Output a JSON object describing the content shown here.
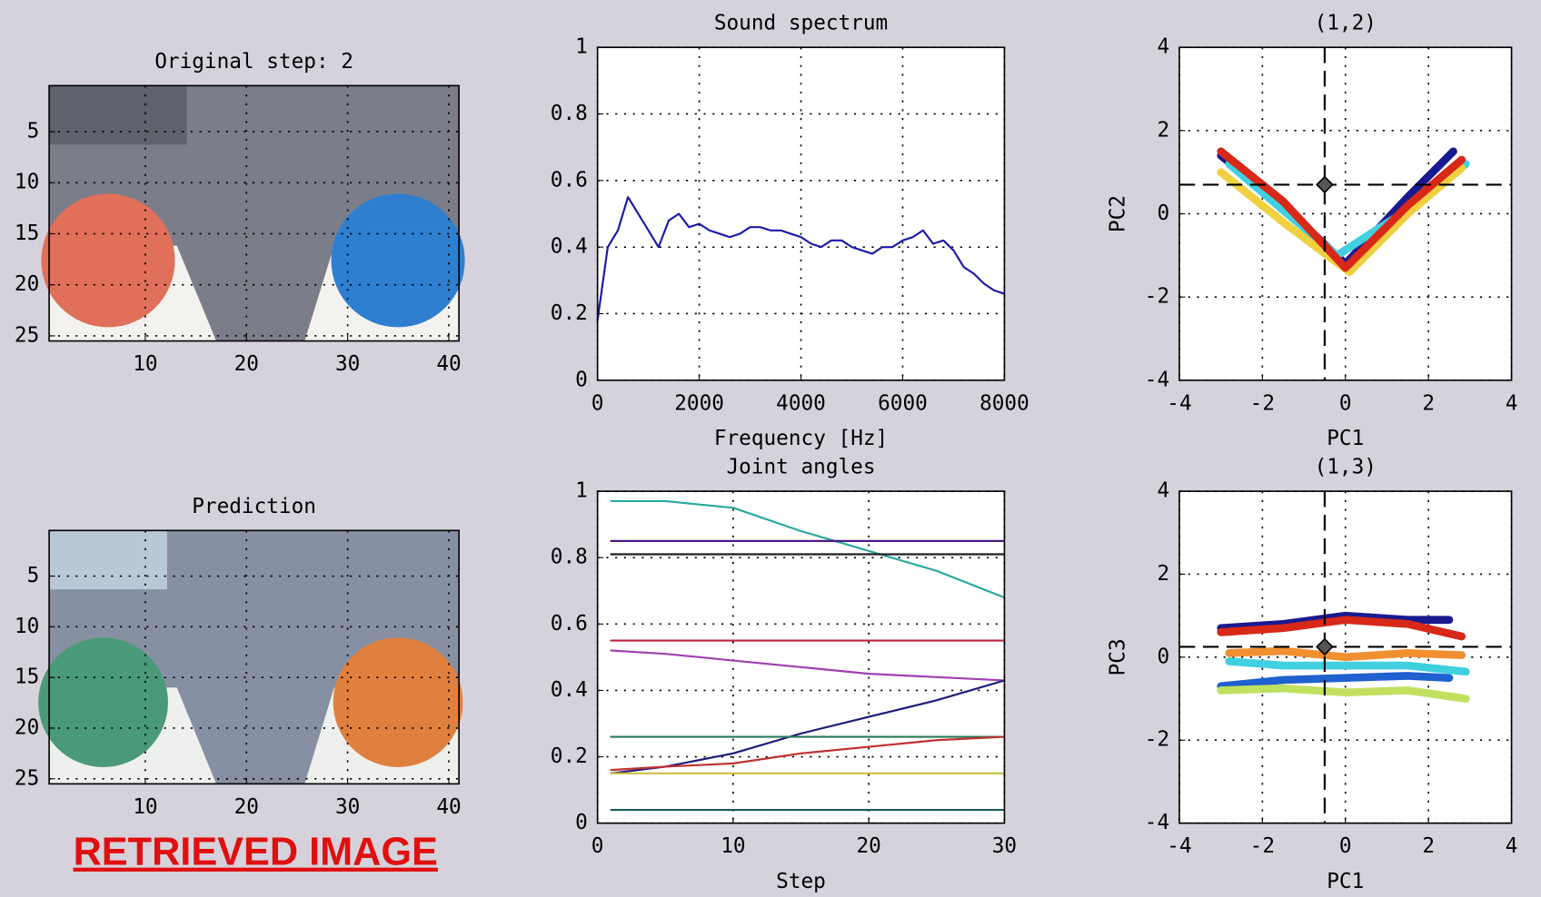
{
  "chart_data": [
    {
      "type": "image",
      "title": "Original step: 2",
      "xlim": [
        0.5,
        41
      ],
      "ylim": [
        25.5,
        0.5
      ],
      "xticks": [
        10,
        20,
        30,
        40
      ],
      "yticks": [
        5,
        10,
        15,
        20,
        25
      ],
      "grid": true
    },
    {
      "type": "line",
      "title": "Sound spectrum",
      "xlabel": "Frequency [Hz]",
      "xlim": [
        0,
        8000
      ],
      "ylim": [
        0,
        1
      ],
      "xticks": [
        0,
        2000,
        4000,
        6000,
        8000
      ],
      "yticks": [
        0,
        0.2,
        0.4,
        0.6,
        0.8,
        1
      ],
      "grid": true,
      "x": [
        0,
        200,
        400,
        600,
        800,
        1000,
        1200,
        1400,
        1600,
        1800,
        2000,
        2200,
        2400,
        2600,
        2800,
        3000,
        3200,
        3400,
        3600,
        3800,
        4000,
        4200,
        4400,
        4600,
        4800,
        5000,
        5200,
        5400,
        5600,
        5800,
        6000,
        6200,
        6400,
        6600,
        6800,
        7000,
        7200,
        7400,
        7600,
        7800,
        8000
      ],
      "series": [
        {
          "color": "#1a1aa8",
          "values": [
            0.18,
            0.4,
            0.45,
            0.55,
            0.5,
            0.45,
            0.4,
            0.48,
            0.5,
            0.46,
            0.47,
            0.45,
            0.44,
            0.43,
            0.44,
            0.46,
            0.46,
            0.45,
            0.45,
            0.44,
            0.43,
            0.41,
            0.4,
            0.42,
            0.42,
            0.4,
            0.39,
            0.38,
            0.4,
            0.4,
            0.42,
            0.43,
            0.45,
            0.41,
            0.42,
            0.39,
            0.34,
            0.32,
            0.29,
            0.27,
            0.26
          ]
        }
      ]
    },
    {
      "type": "line",
      "title": "(1,2)",
      "xlabel": "PC1",
      "ylabel": "PC2",
      "xlim": [
        -4,
        4
      ],
      "ylim": [
        -4,
        4
      ],
      "xticks": [
        -4,
        -2,
        0,
        2,
        4
      ],
      "yticks": [
        -4,
        -2,
        0,
        2,
        4
      ],
      "grid": true,
      "line_width": 8,
      "crosshair": {
        "x": -0.5,
        "y": 0.7
      },
      "series": [
        {
          "color": "#1a1a90",
          "x": [
            -3,
            -1.5,
            0,
            1.5,
            2.6
          ],
          "values": [
            1.4,
            0.2,
            -1.2,
            0.4,
            1.5
          ]
        },
        {
          "color": "#40d0e0",
          "x": [
            -2.8,
            -1.4,
            -0.2,
            1.5,
            2.9
          ],
          "values": [
            1.2,
            0,
            -1,
            0.1,
            1.2
          ]
        },
        {
          "color": "#f0d040",
          "x": [
            -3,
            -1.5,
            0.1,
            1.5,
            2.8
          ],
          "values": [
            1.0,
            -0.2,
            -1.4,
            0,
            1.1
          ]
        },
        {
          "color": "#d82818",
          "x": [
            -3,
            -1.5,
            0,
            1.5,
            2.8
          ],
          "values": [
            1.5,
            0.3,
            -1.3,
            0.2,
            1.3
          ]
        }
      ]
    },
    {
      "type": "image",
      "title": "Prediction",
      "xlim": [
        0.5,
        41
      ],
      "ylim": [
        25.5,
        0.5
      ],
      "xticks": [
        10,
        20,
        30,
        40
      ],
      "yticks": [
        5,
        10,
        15,
        20,
        25
      ],
      "grid": true
    },
    {
      "type": "line",
      "title": "Joint angles",
      "xlabel": "Step",
      "xlim": [
        0,
        30
      ],
      "ylim": [
        0,
        1
      ],
      "xticks": [
        0,
        10,
        20,
        30
      ],
      "yticks": [
        0,
        0.2,
        0.4,
        0.6,
        0.8,
        1
      ],
      "grid": true,
      "x": [
        1,
        5,
        10,
        15,
        20,
        25,
        30
      ],
      "series": [
        {
          "color": "#2aa8a0",
          "values": [
            0.97,
            0.97,
            0.95,
            0.88,
            0.82,
            0.76,
            0.68
          ]
        },
        {
          "color": "#4b1a8a",
          "values": [
            0.85,
            0.85,
            0.85,
            0.85,
            0.85,
            0.85,
            0.85
          ]
        },
        {
          "color": "#202020",
          "values": [
            0.81,
            0.81,
            0.81,
            0.81,
            0.81,
            0.81,
            0.81
          ]
        },
        {
          "color": "#c02040",
          "values": [
            0.55,
            0.55,
            0.55,
            0.55,
            0.55,
            0.55,
            0.55
          ]
        },
        {
          "color": "#a040b0",
          "values": [
            0.52,
            0.51,
            0.49,
            0.47,
            0.45,
            0.44,
            0.43
          ]
        },
        {
          "color": "#1a1a7a",
          "values": [
            0.15,
            0.17,
            0.21,
            0.27,
            0.32,
            0.37,
            0.43
          ]
        },
        {
          "color": "#2a7a5a",
          "values": [
            0.26,
            0.26,
            0.26,
            0.26,
            0.26,
            0.26,
            0.26
          ]
        },
        {
          "color": "#c03030",
          "values": [
            0.16,
            0.17,
            0.18,
            0.21,
            0.23,
            0.25,
            0.26
          ]
        },
        {
          "color": "#c8c040",
          "values": [
            0.15,
            0.15,
            0.15,
            0.15,
            0.15,
            0.15,
            0.15
          ]
        },
        {
          "color": "#1a5a5a",
          "values": [
            0.04,
            0.04,
            0.04,
            0.04,
            0.04,
            0.04,
            0.04
          ]
        }
      ]
    },
    {
      "type": "line",
      "title": "(1,3)",
      "xlabel": "PC1",
      "ylabel": "PC3",
      "xlim": [
        -4,
        4
      ],
      "ylim": [
        -4,
        4
      ],
      "xticks": [
        -4,
        -2,
        0,
        2,
        4
      ],
      "yticks": [
        -4,
        -2,
        0,
        2,
        4
      ],
      "grid": true,
      "line_width": 8,
      "crosshair": {
        "x": -0.5,
        "y": 0.25
      },
      "series": [
        {
          "color": "#1a1a90",
          "x": [
            -3,
            -1.5,
            0,
            1.5,
            2.5
          ],
          "values": [
            0.7,
            0.8,
            1.0,
            0.9,
            0.9
          ]
        },
        {
          "color": "#d82818",
          "x": [
            -3,
            -1.5,
            0,
            1.5,
            2.8
          ],
          "values": [
            0.6,
            0.7,
            0.9,
            0.8,
            0.5
          ]
        },
        {
          "color": "#f09030",
          "x": [
            -2.8,
            -1.5,
            0,
            1.5,
            2.8
          ],
          "values": [
            0.1,
            0.15,
            0,
            0.1,
            0.05
          ]
        },
        {
          "color": "#40d0e0",
          "x": [
            -2.8,
            -1.5,
            0,
            1.5,
            2.9
          ],
          "values": [
            -0.1,
            -0.2,
            -0.2,
            -0.2,
            -0.35
          ]
        },
        {
          "color": "#2060d0",
          "x": [
            -3,
            -1.5,
            0,
            1.5,
            2.5
          ],
          "values": [
            -0.7,
            -0.55,
            -0.5,
            -0.45,
            -0.5
          ]
        },
        {
          "color": "#c0e060",
          "x": [
            -3,
            -1.5,
            0,
            1.5,
            2.9
          ],
          "values": [
            -0.8,
            -0.75,
            -0.85,
            -0.8,
            -1.0
          ]
        }
      ]
    }
  ],
  "caption": "RETRIEVED IMAGE"
}
